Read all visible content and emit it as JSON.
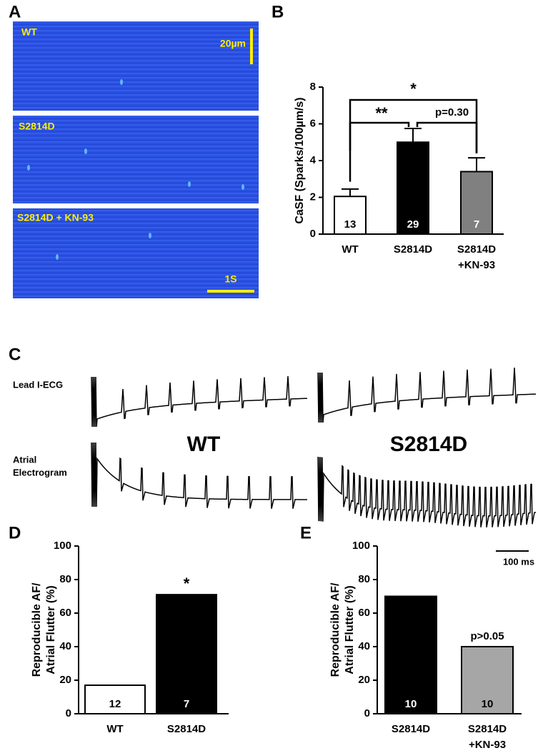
{
  "panel_a": {
    "label": "A",
    "images": [
      "WT",
      "S2814D",
      "S2814D + KN-93"
    ],
    "scale_y": "20µm",
    "scale_x": "1S"
  },
  "panel_c": {
    "label": "C",
    "rows": [
      [
        "Lead I-ECG"
      ],
      [
        "Atrial",
        "Electrogram"
      ]
    ],
    "columns": [
      "WT",
      "S2814D"
    ],
    "scale": "100 ms"
  },
  "chart_data": [
    {
      "type": "bar",
      "panel": "B",
      "ylabel": [
        "CaSF (Sparks/100µm/s)"
      ],
      "categories": [
        "WT",
        "S2814D",
        "S2814D\n+KN-93"
      ],
      "values": [
        2.05,
        5.0,
        3.4
      ],
      "errors": [
        0.4,
        0.75,
        0.75
      ],
      "n": [
        13,
        29,
        7
      ],
      "colors": [
        "#ffffff",
        "#000000",
        "#808080"
      ],
      "ylim": [
        0,
        8
      ],
      "yticks": [
        0,
        2,
        4,
        6,
        8
      ],
      "annotations": [
        "*",
        "**",
        "p=0.30"
      ]
    },
    {
      "type": "bar",
      "panel": "D",
      "ylabel": [
        "Reproducible AF/",
        "Atrial Flutter (%)"
      ],
      "categories": [
        "WT",
        "S2814D"
      ],
      "values": [
        17,
        71
      ],
      "n": [
        12,
        7
      ],
      "colors": [
        "#ffffff",
        "#000000"
      ],
      "ylim": [
        0,
        100
      ],
      "yticks": [
        0,
        20,
        40,
        60,
        80,
        100
      ],
      "annotations": [
        "*"
      ]
    },
    {
      "type": "bar",
      "panel": "E",
      "ylabel": [
        "Reproducible AF/",
        "Atrial Flutter (%)"
      ],
      "categories": [
        "S2814D",
        "S2814D\n+KN-93"
      ],
      "values": [
        70,
        40
      ],
      "n": [
        10,
        10
      ],
      "colors": [
        "#000000",
        "#a6a6a6"
      ],
      "ylim": [
        0,
        100
      ],
      "yticks": [
        0,
        20,
        40,
        60,
        80,
        100
      ],
      "annotations": [
        "p>0.05"
      ]
    }
  ]
}
